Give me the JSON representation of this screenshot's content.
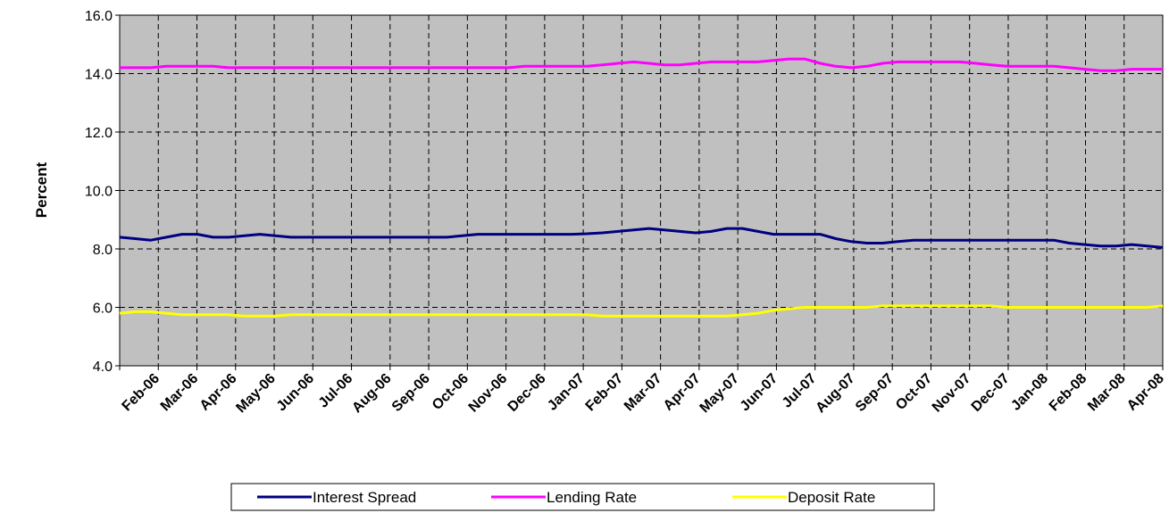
{
  "chart_data": {
    "type": "line",
    "title": "",
    "xlabel": "",
    "ylabel": "Percent",
    "ylim": [
      4.0,
      16.0
    ],
    "yticks": [
      "4.0",
      "6.0",
      "8.0",
      "10.0",
      "12.0",
      "14.0",
      "16.0"
    ],
    "grid": true,
    "legend_position": "bottom",
    "plot_background": "#c0c0c0",
    "x_tick_labels": [
      "Feb-06",
      "Mar-06",
      "Apr-06",
      "May-06",
      "Jun-06",
      "Jul-06",
      "Aug-06",
      "Sep-06",
      "Oct-06",
      "Nov-06",
      "Dec-06",
      "Jan-07",
      "Feb-07",
      "Mar-07",
      "Apr-07",
      "May-07",
      "Jun-07",
      "Jul-07",
      "Aug-07",
      "Sep-07",
      "Oct-07",
      "Nov-07",
      "Dec-07",
      "Jan-08",
      "Feb-08",
      "Mar-08",
      "Apr-08"
    ],
    "series": [
      {
        "name": "Interest Spread",
        "color": "#000080",
        "values": [
          8.4,
          8.35,
          8.3,
          8.4,
          8.5,
          8.5,
          8.4,
          8.4,
          8.45,
          8.5,
          8.45,
          8.4,
          8.4,
          8.4,
          8.4,
          8.4,
          8.4,
          8.4,
          8.4,
          8.4,
          8.4,
          8.4,
          8.45,
          8.5,
          8.5,
          8.5,
          8.5,
          8.5,
          8.5,
          8.5,
          8.52,
          8.55,
          8.6,
          8.65,
          8.7,
          8.65,
          8.6,
          8.55,
          8.6,
          8.7,
          8.7,
          8.6,
          8.5,
          8.5,
          8.5,
          8.5,
          8.35,
          8.25,
          8.2,
          8.2,
          8.25,
          8.3,
          8.3,
          8.3,
          8.3,
          8.3,
          8.3,
          8.3,
          8.3,
          8.3,
          8.3,
          8.2,
          8.15,
          8.1,
          8.1,
          8.15,
          8.1,
          8.05
        ]
      },
      {
        "name": "Lending Rate",
        "color": "#ff00ff",
        "values": [
          14.2,
          14.2,
          14.2,
          14.25,
          14.25,
          14.25,
          14.25,
          14.2,
          14.2,
          14.2,
          14.2,
          14.2,
          14.2,
          14.2,
          14.2,
          14.2,
          14.2,
          14.2,
          14.2,
          14.2,
          14.2,
          14.2,
          14.2,
          14.2,
          14.2,
          14.2,
          14.25,
          14.25,
          14.25,
          14.25,
          14.25,
          14.3,
          14.35,
          14.4,
          14.35,
          14.3,
          14.3,
          14.35,
          14.4,
          14.4,
          14.4,
          14.4,
          14.45,
          14.5,
          14.5,
          14.35,
          14.25,
          14.2,
          14.25,
          14.35,
          14.4,
          14.4,
          14.4,
          14.4,
          14.4,
          14.35,
          14.3,
          14.25,
          14.25,
          14.25,
          14.25,
          14.2,
          14.15,
          14.1,
          14.1,
          14.15,
          14.15,
          14.15
        ]
      },
      {
        "name": "Deposit Rate",
        "color": "#ffff00",
        "values": [
          5.8,
          5.85,
          5.85,
          5.8,
          5.75,
          5.75,
          5.75,
          5.75,
          5.7,
          5.7,
          5.7,
          5.75,
          5.75,
          5.75,
          5.75,
          5.75,
          5.75,
          5.75,
          5.75,
          5.75,
          5.75,
          5.75,
          5.75,
          5.75,
          5.75,
          5.75,
          5.75,
          5.75,
          5.75,
          5.75,
          5.75,
          5.7,
          5.7,
          5.7,
          5.7,
          5.7,
          5.7,
          5.7,
          5.7,
          5.7,
          5.75,
          5.8,
          5.9,
          5.95,
          6.0,
          6.0,
          6.0,
          6.0,
          6.0,
          6.05,
          6.05,
          6.05,
          6.05,
          6.05,
          6.05,
          6.05,
          6.05,
          6.0,
          6.0,
          6.0,
          6.0,
          6.0,
          6.0,
          6.0,
          6.0,
          6.0,
          6.0,
          6.05
        ]
      }
    ]
  }
}
